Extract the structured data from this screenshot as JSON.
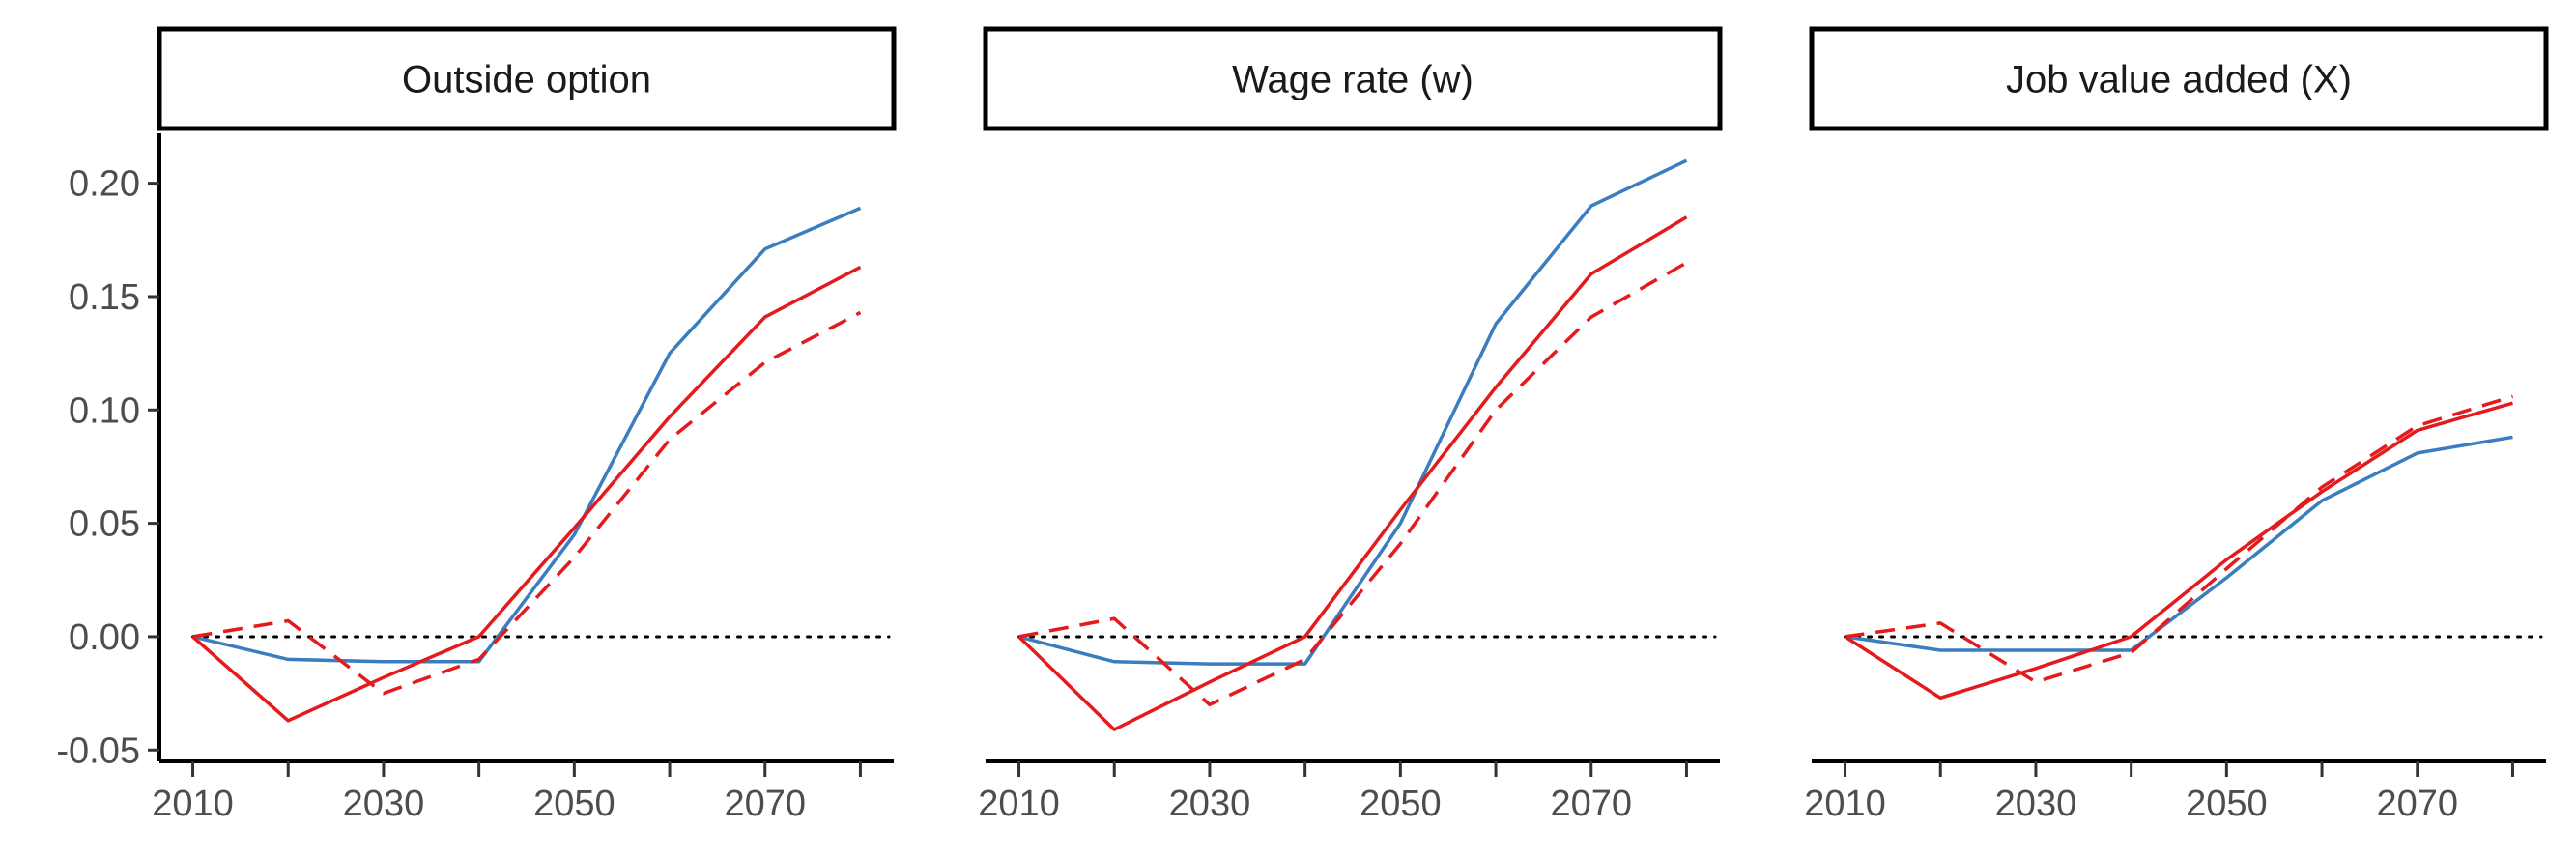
{
  "chart_data": [
    {
      "type": "line",
      "title": "Outside option",
      "x": [
        2010,
        2020,
        2030,
        2040,
        2050,
        2060,
        2070,
        2080
      ],
      "x_ticks": [
        2010,
        2030,
        2050,
        2070
      ],
      "x_minor_ticks": [
        2020,
        2040,
        2060,
        2080
      ],
      "xlim": [
        2006.5,
        2083.5
      ],
      "y_ticks": [
        -0.05,
        0.0,
        0.05,
        0.1,
        0.15,
        0.2
      ],
      "y_tick_labels": [
        "-0.05",
        "0.00",
        "0.05",
        "0.10",
        "0.15",
        "0.20"
      ],
      "ylim": [
        -0.055,
        0.222
      ],
      "reference_line": 0,
      "grid": false,
      "series": [
        {
          "color": "#3a7ebf",
          "dash": "solid",
          "values": [
            0.0,
            -0.01,
            -0.011,
            -0.011,
            0.045,
            0.125,
            0.171,
            0.189
          ]
        },
        {
          "color": "#e41a1c",
          "dash": "solid",
          "values": [
            0.0,
            -0.037,
            -0.018,
            0.0,
            0.048,
            0.097,
            0.141,
            0.163
          ]
        },
        {
          "color": "#e41a1c",
          "dash": "dashed",
          "values": [
            0.0,
            0.007,
            -0.025,
            -0.01,
            0.035,
            0.087,
            0.121,
            0.143
          ]
        }
      ]
    },
    {
      "type": "line",
      "title": "Wage rate (w)",
      "x": [
        2010,
        2020,
        2030,
        2040,
        2050,
        2060,
        2070,
        2080
      ],
      "x_ticks": [
        2010,
        2030,
        2050,
        2070
      ],
      "x_minor_ticks": [
        2020,
        2040,
        2060,
        2080
      ],
      "xlim": [
        2006.5,
        2083.5
      ],
      "y_ticks": [
        -0.05,
        0.0,
        0.05,
        0.1,
        0.15,
        0.2
      ],
      "ylim": [
        -0.055,
        0.222
      ],
      "reference_line": 0,
      "grid": false,
      "series": [
        {
          "color": "#3a7ebf",
          "dash": "solid",
          "values": [
            0.0,
            -0.011,
            -0.012,
            -0.012,
            0.05,
            0.138,
            0.19,
            0.21
          ]
        },
        {
          "color": "#e41a1c",
          "dash": "solid",
          "values": [
            0.0,
            -0.041,
            -0.02,
            0.0,
            0.056,
            0.11,
            0.16,
            0.185
          ]
        },
        {
          "color": "#e41a1c",
          "dash": "dashed",
          "values": [
            0.0,
            0.008,
            -0.03,
            -0.01,
            0.041,
            0.1,
            0.141,
            0.165
          ]
        }
      ]
    },
    {
      "type": "line",
      "title": "Job value added (X)",
      "x": [
        2010,
        2020,
        2030,
        2040,
        2050,
        2060,
        2070,
        2080
      ],
      "x_ticks": [
        2010,
        2030,
        2050,
        2070
      ],
      "x_minor_ticks": [
        2020,
        2040,
        2060,
        2080
      ],
      "xlim": [
        2006.5,
        2083.5
      ],
      "y_ticks": [
        -0.05,
        0.0,
        0.05,
        0.1,
        0.15,
        0.2
      ],
      "ylim": [
        -0.055,
        0.222
      ],
      "reference_line": 0,
      "grid": false,
      "series": [
        {
          "color": "#3a7ebf",
          "dash": "solid",
          "values": [
            0.0,
            -0.006,
            -0.006,
            -0.006,
            0.026,
            0.06,
            0.081,
            0.088
          ]
        },
        {
          "color": "#e41a1c",
          "dash": "solid",
          "values": [
            0.0,
            -0.027,
            -0.014,
            0.0,
            0.034,
            0.064,
            0.091,
            0.103
          ]
        },
        {
          "color": "#e41a1c",
          "dash": "dashed",
          "values": [
            0.0,
            0.006,
            -0.02,
            -0.007,
            0.03,
            0.066,
            0.093,
            0.106
          ]
        }
      ]
    }
  ]
}
